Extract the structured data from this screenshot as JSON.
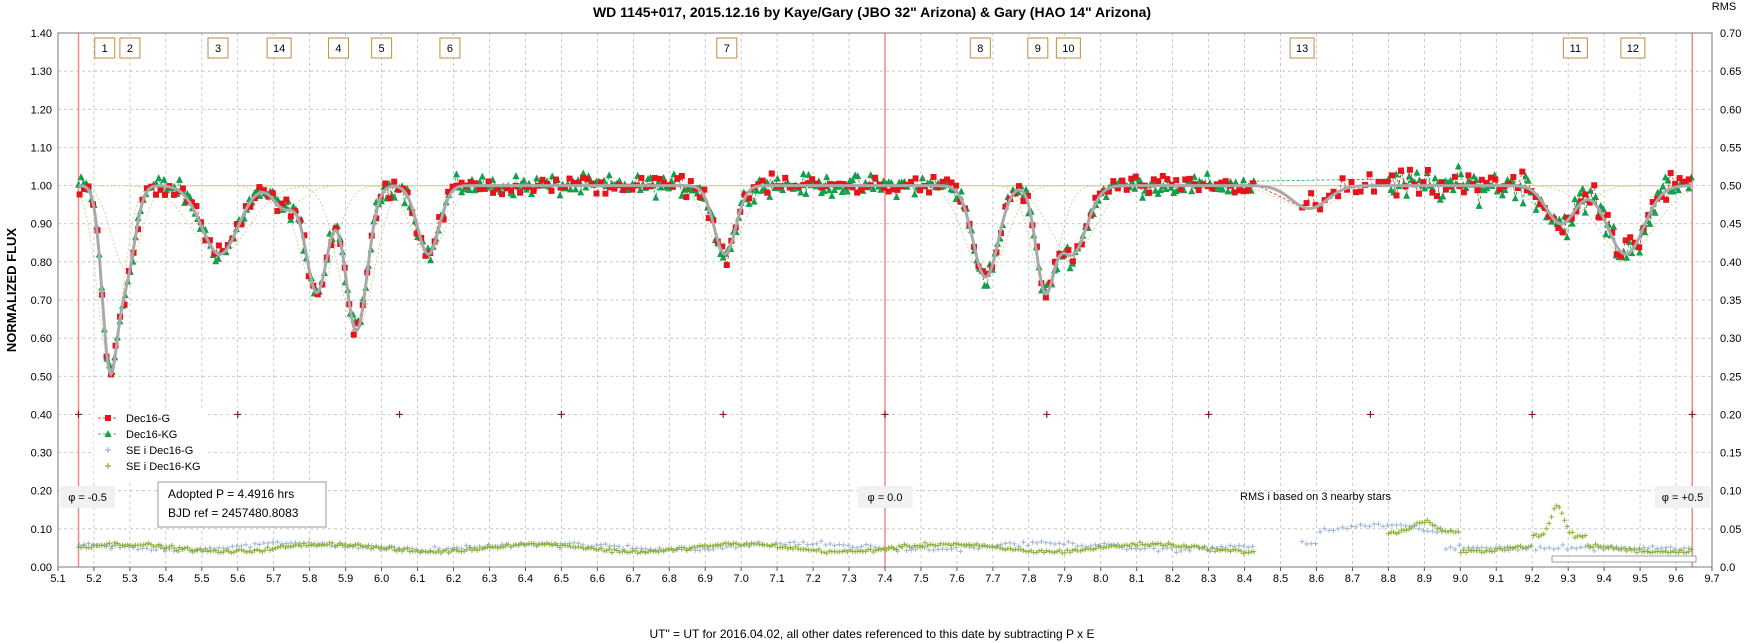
{
  "chart_data": {
    "type": "scatter",
    "title": "WD 1145+017, 2015.12.16  by Kaye/Gary (JBO 32\" Arizona) & Gary (HAO 14\" Arizona)",
    "xlabel": "UT\" = UT for 2016.04.02, all other dates referenced to this date by subtracting P x E",
    "ylabel": "NORMALIZED FLUX",
    "y2label": "RMS",
    "xlim": [
      5.1,
      9.7
    ],
    "ylim": [
      0.0,
      1.4
    ],
    "y2lim": [
      0.0,
      0.7
    ],
    "xticks": [
      "5.1",
      "5.2",
      "5.3",
      "5.4",
      "5.5",
      "5.6",
      "5.7",
      "5.8",
      "5.9",
      "6.0",
      "6.1",
      "6.2",
      "6.3",
      "6.4",
      "6.5",
      "6.6",
      "6.7",
      "6.8",
      "6.9",
      "7.0",
      "7.1",
      "7.2",
      "7.3",
      "7.4",
      "7.5",
      "7.6",
      "7.7",
      "7.8",
      "7.9",
      "8.0",
      "8.1",
      "8.2",
      "8.3",
      "8.4",
      "8.5",
      "8.6",
      "8.7",
      "8.8",
      "8.9",
      "9.0",
      "9.1",
      "9.2",
      "9.3",
      "9.4",
      "9.5",
      "9.6",
      "9.7"
    ],
    "yticks": [
      "0.00",
      "0.10",
      "0.20",
      "0.30",
      "0.40",
      "0.50",
      "0.60",
      "0.70",
      "0.80",
      "0.90",
      "1.00",
      "1.10",
      "1.20",
      "1.30",
      "1.40"
    ],
    "y2ticks": [
      "0.0",
      "0.05",
      "0.10",
      "0.15",
      "0.20",
      "0.25",
      "0.30",
      "0.35",
      "0.40",
      "0.45",
      "0.50",
      "0.55",
      "0.60",
      "0.65",
      "0.70"
    ],
    "grid": true,
    "legend": {
      "position": "lower-left",
      "entries": [
        "Dec16-G",
        "Dec16-KG",
        "SE i Dec16-G",
        "SE i Dec16-KG"
      ]
    },
    "colors": {
      "dec16_g": "#e8141b",
      "dec16_kg": "#12a04b",
      "se_g": "#9fb6d4",
      "se_kg": "#8cb23a",
      "model": "#a9a9a9",
      "dip_model": "#d9d2a2",
      "phase_line": "#f08a8a",
      "box_border": "#c8893c",
      "marker_plus": "#8b1a1a"
    },
    "phase_lines_x": [
      5.157,
      7.4,
      9.645
    ],
    "phase_labels": [
      {
        "x": 5.157,
        "text": "φ = -0.5"
      },
      {
        "x": 7.4,
        "text": "φ = 0.0"
      },
      {
        "x": 9.645,
        "text": "φ = +0.5"
      }
    ],
    "dips": [
      {
        "label": "1",
        "x": 5.245,
        "depth": 0.47,
        "width": 0.022
      },
      {
        "label": "2",
        "x": 5.29,
        "depth": 0.22,
        "width": 0.025
      },
      {
        "label": "3",
        "x": 5.55,
        "depth": 0.18,
        "width": 0.05
      },
      {
        "label": "14",
        "x": 5.73,
        "depth": 0.06,
        "width": 0.03
      },
      {
        "label": "4",
        "x": 5.82,
        "depth": 0.28,
        "width": 0.03
      },
      {
        "label": "5",
        "x": 5.93,
        "depth": 0.38,
        "width": 0.03
      },
      {
        "label": "6",
        "x": 6.13,
        "depth": 0.18,
        "width": 0.03
      },
      {
        "label": "7",
        "x": 6.955,
        "depth": 0.18,
        "width": 0.03
      },
      {
        "label": "8",
        "x": 7.68,
        "depth": 0.24,
        "width": 0.035
      },
      {
        "label": "9",
        "x": 7.845,
        "depth": 0.26,
        "width": 0.025
      },
      {
        "label": "10",
        "x": 7.92,
        "depth": 0.18,
        "width": 0.04
      },
      {
        "label": "13",
        "x": 8.58,
        "depth": 0.06,
        "width": 0.05
      },
      {
        "label": "11",
        "x": 9.28,
        "depth": 0.1,
        "width": 0.04
      },
      {
        "label": "12",
        "x": 9.46,
        "depth": 0.18,
        "width": 0.05
      }
    ],
    "dip_boxes": [
      {
        "label": "1",
        "x": 5.23
      },
      {
        "label": "2",
        "x": 5.3
      },
      {
        "label": "3",
        "x": 5.545
      },
      {
        "label": "14",
        "x": 5.715
      },
      {
        "label": "4",
        "x": 5.88
      },
      {
        "label": "5",
        "x": 6.0
      },
      {
        "label": "6",
        "x": 6.19
      },
      {
        "label": "7",
        "x": 6.96
      },
      {
        "label": "8",
        "x": 7.665
      },
      {
        "label": "9",
        "x": 7.825
      },
      {
        "label": "10",
        "x": 7.91
      },
      {
        "label": "13",
        "x": 8.56
      },
      {
        "label": "11",
        "x": 9.32
      },
      {
        "label": "12",
        "x": 9.48
      }
    ],
    "plus_markers_y": 0.4,
    "plus_markers_x": [
      5.157,
      5.6,
      6.05,
      6.5,
      6.95,
      7.4,
      7.85,
      8.3,
      8.75,
      9.2,
      9.645
    ],
    "data_gap": [
      8.43,
      8.55
    ]
  },
  "annotations": {
    "adopted_p": "Adopted P = 4.4916  hrs",
    "bjd_ref": "BJD ref = 2457480.8083",
    "rms_note": "RMS i based on 3 nearby stars"
  }
}
